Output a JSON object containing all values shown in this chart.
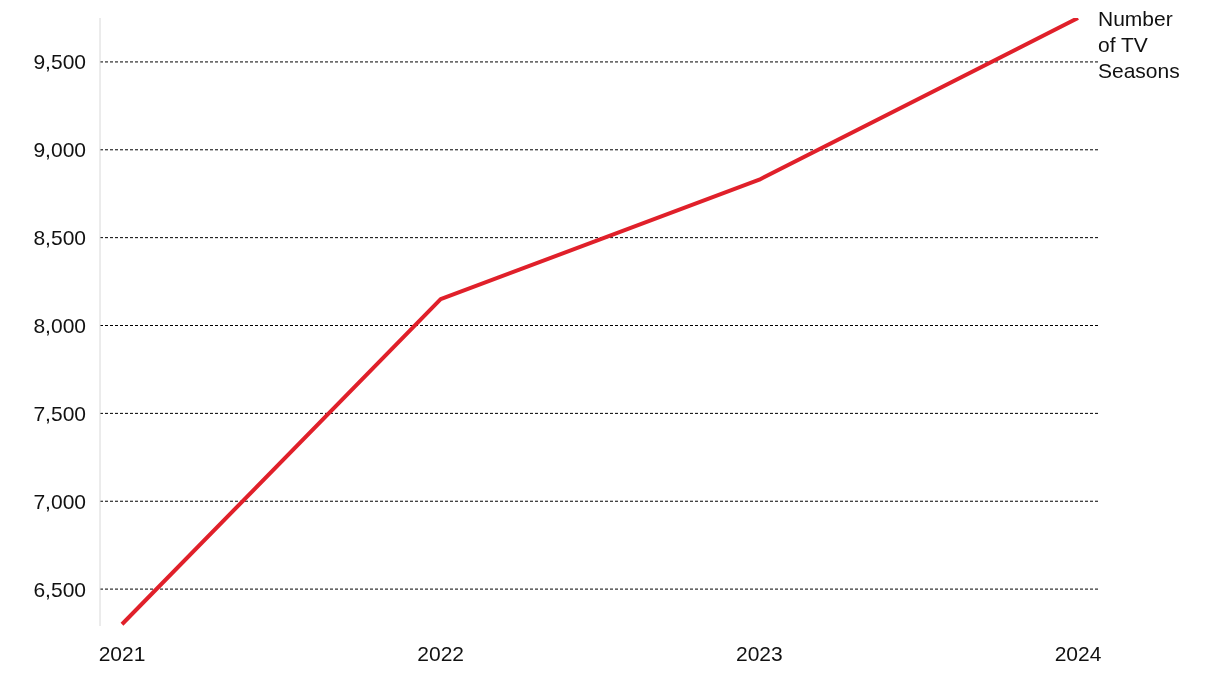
{
  "chart_data": {
    "type": "line",
    "categories": [
      "2021",
      "2022",
      "2023",
      "2024"
    ],
    "series": [
      {
        "name": "Number of TV Seasons",
        "color": "#e0202a",
        "values": [
          6300,
          8150,
          8830,
          9750
        ]
      }
    ],
    "ylim": [
      6290,
      9750
    ],
    "yticks": [
      {
        "value": 6500,
        "label": "6,500"
      },
      {
        "value": 7000,
        "label": "7,000"
      },
      {
        "value": 7500,
        "label": "7,500"
      },
      {
        "value": 8000,
        "label": "8,000"
      },
      {
        "value": 8500,
        "label": "8,500"
      },
      {
        "value": 9000,
        "label": "9,000"
      },
      {
        "value": 9500,
        "label": "9,500"
      }
    ],
    "grid": "y",
    "line_style": "solid",
    "marker": "none"
  }
}
